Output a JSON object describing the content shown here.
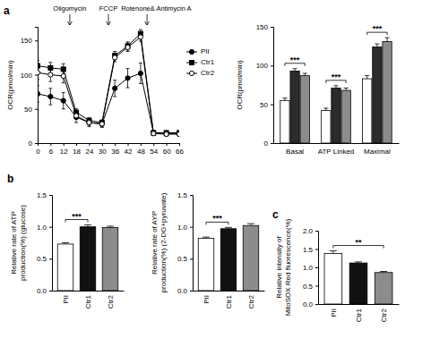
{
  "chart_data": [
    {
      "panel": "a",
      "type": "line",
      "y_label": "OCR(pmol/min)",
      "x": [
        0,
        6,
        12,
        18,
        24,
        30,
        36,
        42,
        48,
        54,
        60,
        66
      ],
      "xlim": [
        0,
        66
      ],
      "xticks": [
        0,
        6,
        12,
        18,
        24,
        30,
        36,
        42,
        48,
        54,
        60,
        66
      ],
      "ylim": [
        0,
        170
      ],
      "yticks": [
        0,
        50,
        100,
        150
      ],
      "legend": "right",
      "series": [
        {
          "name": "PII",
          "color": "#000000",
          "marker": "circle",
          "values": [
            72,
            68,
            62,
            38,
            30,
            28,
            80,
            95,
            102,
            15,
            14,
            14
          ],
          "errors": [
            12,
            12,
            12,
            8,
            6,
            5,
            12,
            14,
            15,
            3,
            3,
            3
          ]
        },
        {
          "name": "Ctr1",
          "color": "#000000",
          "marker": "square",
          "values": [
            113,
            110,
            108,
            45,
            33,
            30,
            128,
            142,
            160,
            15,
            15,
            15
          ],
          "errors": [
            8,
            8,
            8,
            5,
            4,
            4,
            6,
            6,
            6,
            3,
            3,
            3
          ]
        },
        {
          "name": "Ctr2",
          "color": "#000000",
          "marker": "open-circle",
          "values": [
            103,
            100,
            98,
            40,
            30,
            28,
            125,
            140,
            155,
            14,
            13,
            13
          ],
          "errors": [
            10,
            10,
            10,
            5,
            4,
            4,
            6,
            6,
            6,
            3,
            3,
            3
          ]
        }
      ],
      "annotations": [
        {
          "text": "Oligomycin",
          "x": 15
        },
        {
          "text": "FCCP",
          "x": 33
        },
        {
          "text": "Rotenone& Antimycin A",
          "x": 51
        }
      ]
    },
    {
      "type": "bar",
      "y_label": "OCR(pmol/min)",
      "categories": [
        "Basal",
        "ATP Linked",
        "Maximal"
      ],
      "ylim": [
        0,
        150
      ],
      "yticks": [
        0,
        50,
        100,
        150
      ],
      "series": [
        {
          "name": "PII",
          "color": "#ffffff",
          "values": [
            55,
            42,
            83
          ],
          "errors": [
            3,
            3,
            4
          ]
        },
        {
          "name": "Ctr1",
          "color": "#2b2b2b",
          "values": [
            93,
            71,
            124
          ],
          "errors": [
            3,
            3,
            4
          ]
        },
        {
          "name": "Ctr2",
          "color": "#8c8c8c",
          "values": [
            87,
            68,
            131
          ],
          "errors": [
            3,
            3,
            5
          ]
        }
      ],
      "annotations": [
        {
          "text": "***",
          "category": "Basal",
          "from": "PII",
          "to": "Ctr2"
        },
        {
          "text": "***",
          "category": "ATP Linked",
          "from": "PII",
          "to": "Ctr2"
        },
        {
          "text": "***",
          "category": "Maximal",
          "from": "PII",
          "to": "Ctr2"
        }
      ]
    },
    {
      "panel": "b",
      "type": "bar",
      "y_label": [
        "Relative rate of ATP",
        "production(%) (glucose)"
      ],
      "categories": [
        "PII",
        "Ctr1",
        "Ctr2"
      ],
      "values": [
        0.73,
        1.0,
        0.99
      ],
      "errors": [
        0.02,
        0.03,
        0.02
      ],
      "colors": [
        "#ffffff",
        "#111111",
        "#8c8c8c"
      ],
      "ylim": [
        0,
        1.5
      ],
      "yticks": [
        {
          "value": 0,
          "label": "0.0"
        },
        0.5,
        {
          "value": 1,
          "label": "1.0"
        },
        1.5
      ],
      "annotations": [
        {
          "text": "***",
          "from": "PII",
          "to": "Ctr1"
        }
      ]
    },
    {
      "type": "bar",
      "y_label": [
        "Relative rate of AYP",
        "production(%) (2-DG+pyruvate)"
      ],
      "categories": [
        "PII",
        "Ctr1",
        "Ctr2"
      ],
      "values": [
        0.82,
        0.97,
        1.02
      ],
      "errors": [
        0.02,
        0.02,
        0.03
      ],
      "colors": [
        "#ffffff",
        "#111111",
        "#8c8c8c"
      ],
      "ylim": [
        0,
        1.5
      ],
      "yticks": [
        {
          "value": 0,
          "label": "0.0"
        },
        0.5,
        {
          "value": 1,
          "label": "1.0"
        },
        1.5
      ],
      "annotations": [
        {
          "text": "***",
          "from": "PII",
          "to": "Ctr1"
        }
      ]
    },
    {
      "panel": "c",
      "type": "bar",
      "y_label": [
        "Relative intensity of",
        "MitoSOX Red fluorescence(%)"
      ],
      "categories": [
        "PII",
        "Ctr1",
        "Ctr2"
      ],
      "values": [
        1.38,
        1.12,
        0.86
      ],
      "errors": [
        0.07,
        0.03,
        0.03
      ],
      "colors": [
        "#ffffff",
        "#111111",
        "#8c8c8c"
      ],
      "ylim": [
        0,
        2
      ],
      "yticks": [
        {
          "value": 0,
          "label": "0.0"
        },
        0.5,
        {
          "value": 1,
          "label": "1.0"
        },
        1.5,
        {
          "value": 2,
          "label": "2.0"
        }
      ],
      "annotations": [
        {
          "text": "**",
          "from": "PII",
          "to": "Ctr2"
        }
      ]
    }
  ]
}
